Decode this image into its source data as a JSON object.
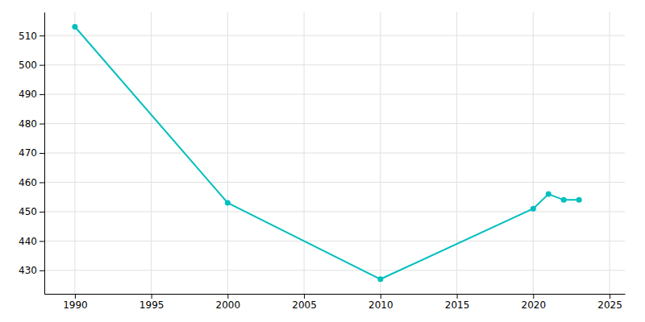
{
  "chart_data": {
    "type": "line",
    "x": [
      1990,
      2000,
      2010,
      2020,
      2021,
      2022,
      2023
    ],
    "values": [
      513,
      453,
      427,
      451,
      456,
      454,
      454
    ],
    "color": "#00BFBF",
    "marker": "circle",
    "xlim": [
      1988,
      2026
    ],
    "ylim": [
      422,
      518
    ],
    "xticks": [
      1990,
      1995,
      2000,
      2005,
      2010,
      2015,
      2020,
      2025
    ],
    "yticks": [
      430,
      440,
      450,
      460,
      470,
      480,
      490,
      500,
      510
    ],
    "grid": true
  }
}
